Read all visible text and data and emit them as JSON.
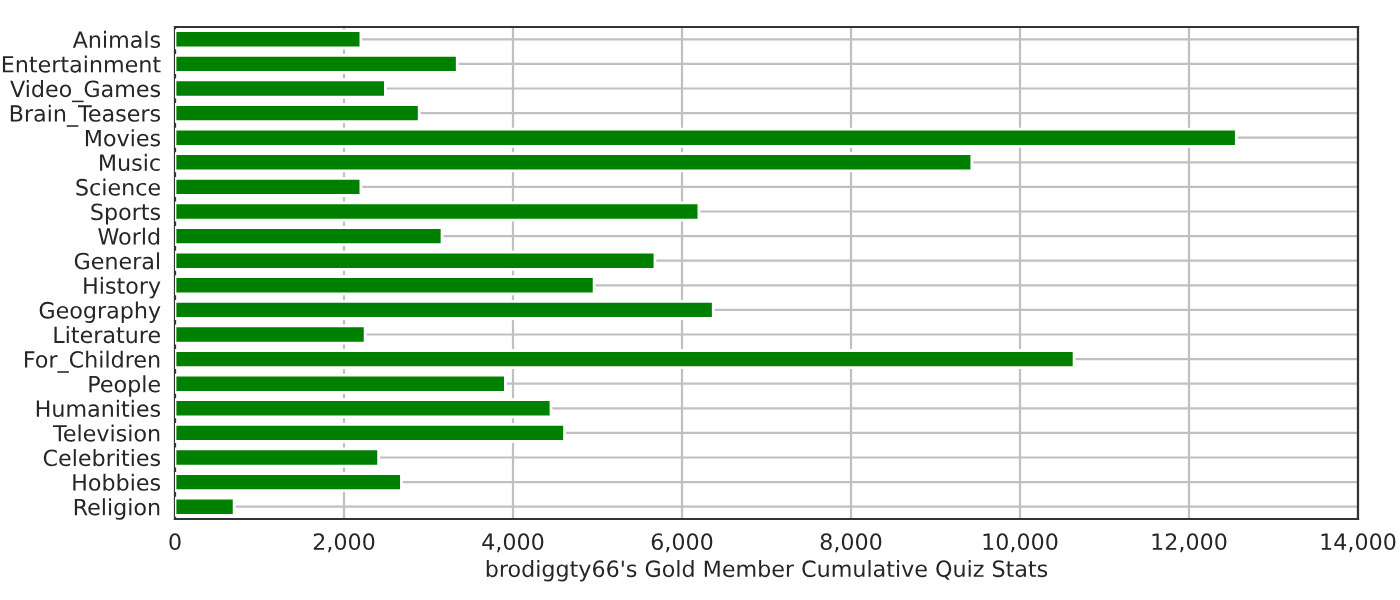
{
  "chart_data": {
    "type": "bar",
    "orientation": "horizontal",
    "xlabel": "brodiggty66's Gold Member Cumulative Quiz Stats",
    "categories": [
      "Animals",
      "Entertainment",
      "Video_Games",
      "Brain_Teasers",
      "Movies",
      "Music",
      "Science",
      "Sports",
      "World",
      "General",
      "History",
      "Geography",
      "Literature",
      "For_Children",
      "People",
      "Humanities",
      "Television",
      "Celebrities",
      "Hobbies",
      "Religion"
    ],
    "values": [
      2200,
      3340,
      2490,
      2890,
      12560,
      9430,
      2200,
      6200,
      3160,
      5680,
      4960,
      6370,
      2250,
      10640,
      3910,
      4450,
      4610,
      2410,
      2680,
      700
    ],
    "color": "#008000",
    "xlim": [
      0,
      14000
    ],
    "xticks": [
      0,
      {
        "value": 2000,
        "label": "2,000"
      },
      {
        "value": 4000,
        "label": "4,000"
      },
      {
        "value": 6000,
        "label": "6,000"
      },
      {
        "value": 8000,
        "label": "8,000"
      },
      {
        "value": 10000,
        "label": "10,000"
      },
      {
        "value": 12000,
        "label": "12,000"
      },
      {
        "value": 14000,
        "label": "14,000"
      }
    ],
    "grid": true
  }
}
